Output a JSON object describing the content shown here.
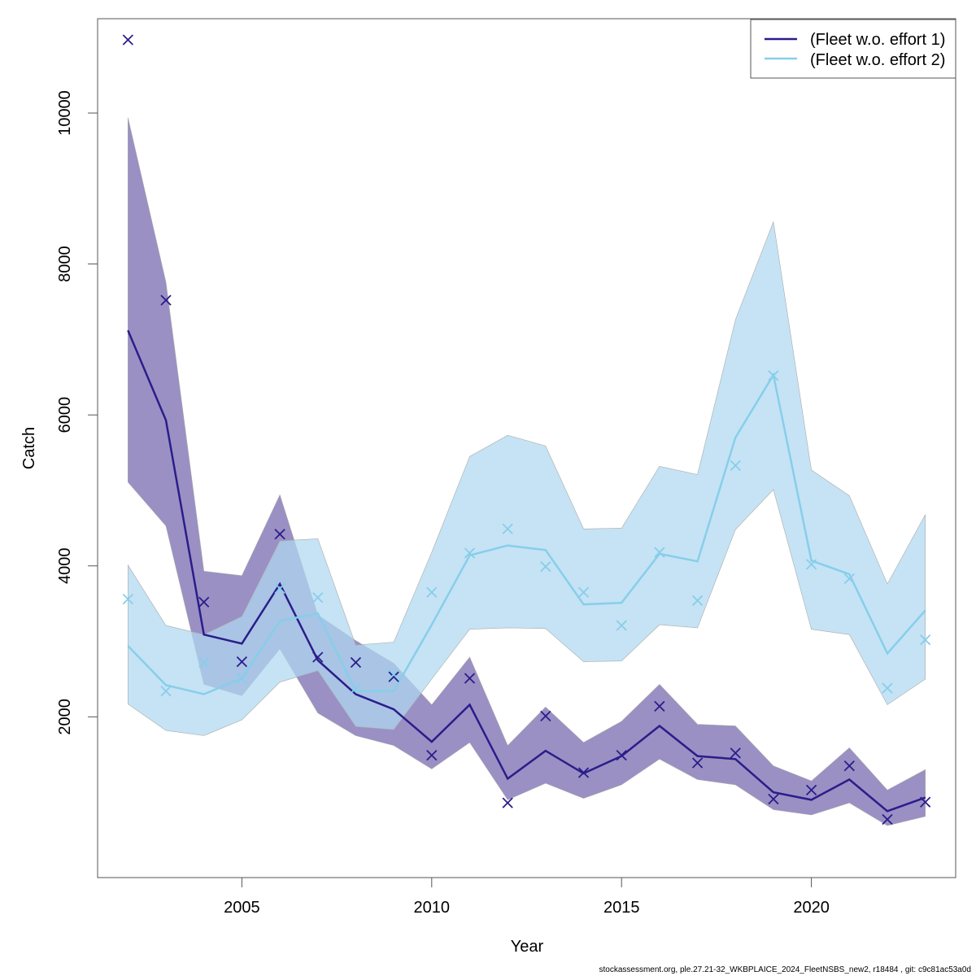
{
  "footer": "stockassessment.org, ple.27.21-32_WKBPLAICE_2024_FleetNSBS_new2, r18484 , git: c9c81ac53a0d",
  "chart_data": {
    "type": "line",
    "title": "",
    "xlabel": "Year",
    "ylabel": "Catch",
    "xlim": [
      2001.2,
      2023.8
    ],
    "ylim": [
      -130,
      11250
    ],
    "xticks": [
      2005,
      2010,
      2015,
      2020
    ],
    "yticks": [
      2000,
      4000,
      6000,
      8000,
      10000
    ],
    "grid": false,
    "legend_position": "top-right",
    "x": [
      2002,
      2003,
      2004,
      2005,
      2006,
      2007,
      2008,
      2009,
      2010,
      2011,
      2012,
      2013,
      2014,
      2015,
      2016,
      2017,
      2018,
      2019,
      2020,
      2021,
      2022,
      2023
    ],
    "series": [
      {
        "name": "(Fleet w.o. effort 1)",
        "color": "#2a1d8a",
        "band_color": "#9a90c4",
        "estimate": [
          7120,
          5930,
          3090,
          2970,
          3760,
          2750,
          2300,
          2100,
          1670,
          2160,
          1180,
          1550,
          1250,
          1480,
          1880,
          1480,
          1440,
          1000,
          900,
          1170,
          750,
          930
        ],
        "lower": [
          5110,
          4530,
          2430,
          2280,
          2900,
          2050,
          1750,
          1620,
          1310,
          1660,
          900,
          1120,
          920,
          1100,
          1440,
          1170,
          1100,
          770,
          700,
          860,
          560,
          680
        ],
        "upper": [
          9940,
          7760,
          3930,
          3870,
          4940,
          3350,
          3010,
          2710,
          2160,
          2790,
          1620,
          2130,
          1660,
          1940,
          2430,
          1900,
          1880,
          1350,
          1150,
          1590,
          1030,
          1300
        ],
        "observed": [
          10970,
          7520,
          3520,
          2730,
          4420,
          2790,
          2720,
          2530,
          1490,
          2510,
          860,
          2010,
          1260,
          1490,
          2140,
          1390,
          1520,
          910,
          1030,
          1350,
          640,
          870
        ]
      },
      {
        "name": "(Fleet w.o. effort 2)",
        "color": "#87ceeb",
        "band_color": "#aed8f0",
        "estimate": [
          2940,
          2420,
          2300,
          2510,
          3270,
          3370,
          2340,
          2340,
          3220,
          4140,
          4270,
          4210,
          3490,
          3510,
          4160,
          4060,
          5700,
          6530,
          4070,
          3890,
          2840,
          3410
        ],
        "lower": [
          2170,
          1820,
          1750,
          1960,
          2460,
          2610,
          1870,
          1830,
          2500,
          3160,
          3180,
          3170,
          2730,
          2740,
          3220,
          3180,
          4480,
          5010,
          3160,
          3090,
          2160,
          2500
        ],
        "upper": [
          4010,
          3210,
          3090,
          3330,
          4330,
          4360,
          2950,
          2990,
          4180,
          5450,
          5730,
          5590,
          4490,
          4500,
          5320,
          5210,
          7260,
          8560,
          5270,
          4930,
          3760,
          4680
        ],
        "observed": [
          3560,
          2340,
          2720,
          2510,
          3700,
          3580,
          2380,
          2560,
          3650,
          4170,
          4490,
          3990,
          3650,
          3210,
          4180,
          3540,
          5330,
          6520,
          4020,
          3830,
          2380,
          3020
        ]
      }
    ]
  }
}
